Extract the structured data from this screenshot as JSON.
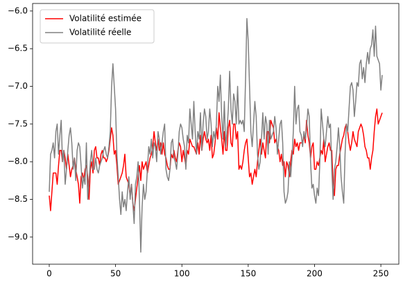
{
  "chart_data": {
    "type": "line",
    "x": [
      0,
      1,
      2,
      3,
      4,
      5,
      6,
      7,
      8,
      9,
      10,
      11,
      12,
      13,
      14,
      15,
      16,
      17,
      18,
      19,
      20,
      21,
      22,
      23,
      24,
      25,
      26,
      27,
      28,
      29,
      30,
      31,
      32,
      33,
      34,
      35,
      36,
      37,
      38,
      39,
      40,
      41,
      42,
      43,
      44,
      45,
      46,
      47,
      48,
      49,
      50,
      51,
      52,
      53,
      54,
      55,
      56,
      57,
      58,
      59,
      60,
      61,
      62,
      63,
      64,
      65,
      66,
      67,
      68,
      69,
      70,
      71,
      72,
      73,
      74,
      75,
      76,
      77,
      78,
      79,
      80,
      81,
      82,
      83,
      84,
      85,
      86,
      87,
      88,
      89,
      90,
      91,
      92,
      93,
      94,
      95,
      96,
      97,
      98,
      99,
      100,
      101,
      102,
      103,
      104,
      105,
      106,
      107,
      108,
      109,
      110,
      111,
      112,
      113,
      114,
      115,
      116,
      117,
      118,
      119,
      120,
      121,
      122,
      123,
      124,
      125,
      126,
      127,
      128,
      129,
      130,
      131,
      132,
      133,
      134,
      135,
      136,
      137,
      138,
      139,
      140,
      141,
      142,
      143,
      144,
      145,
      146,
      147,
      148,
      149,
      150,
      151,
      152,
      153,
      154,
      155,
      156,
      157,
      158,
      159,
      160,
      161,
      162,
      163,
      164,
      165,
      166,
      167,
      168,
      169,
      170,
      171,
      172,
      173,
      174,
      175,
      176,
      177,
      178,
      179,
      180,
      181,
      182,
      183,
      184,
      185,
      186,
      187,
      188,
      189,
      190,
      191,
      192,
      193,
      194,
      195,
      196,
      197,
      198,
      199,
      200,
      201,
      202,
      203,
      204,
      205,
      206,
      207,
      208,
      209,
      210,
      211,
      212,
      213,
      214,
      215,
      216,
      217,
      218,
      219,
      220,
      221,
      222,
      223,
      224,
      225,
      226,
      227,
      228,
      229,
      230,
      231,
      232,
      233,
      234,
      235,
      236,
      237,
      238,
      239,
      240,
      241,
      242,
      243,
      244,
      245,
      246,
      247,
      248,
      249,
      250,
      251
    ],
    "series": [
      {
        "name": "Volatilité estimée",
        "color": "#ff0000",
        "values": [
          -8.45,
          -8.65,
          -8.4,
          -8.15,
          -8.15,
          -8.15,
          -8.3,
          -8.05,
          -7.85,
          -7.85,
          -8.0,
          -7.85,
          -7.95,
          -8.1,
          -7.9,
          -8.05,
          -8.2,
          -8.1,
          -8.05,
          -7.95,
          -8.1,
          -8.2,
          -8.3,
          -8.55,
          -8.2,
          -8.15,
          -8.25,
          -8.1,
          -8.05,
          -8.2,
          -8.5,
          -8.1,
          -8.0,
          -8.15,
          -7.85,
          -7.8,
          -7.95,
          -7.95,
          -8.05,
          -7.9,
          -7.85,
          -7.95,
          -7.95,
          -8.0,
          -7.95,
          -7.85,
          -7.7,
          -7.55,
          -7.65,
          -7.9,
          -7.85,
          -8.05,
          -8.3,
          -8.25,
          -8.2,
          -8.15,
          -8.05,
          -7.9,
          -8.2,
          -8.25,
          -8.3,
          -8.45,
          -8.3,
          -8.55,
          -8.65,
          -8.5,
          -8.35,
          -8.2,
          -8.05,
          -8.25,
          -8.0,
          -8.1,
          -8.05,
          -8.0,
          -8.15,
          -8.05,
          -7.95,
          -7.9,
          -7.8,
          -7.6,
          -7.75,
          -7.85,
          -7.7,
          -7.85,
          -7.75,
          -7.9,
          -7.75,
          -7.9,
          -7.95,
          -8.05,
          -8.1,
          -8.1,
          -7.9,
          -7.95,
          -7.85,
          -7.95,
          -8.0,
          -7.85,
          -7.75,
          -7.8,
          -8.0,
          -7.85,
          -7.95,
          -8.05,
          -7.85,
          -7.9,
          -7.7,
          -7.75,
          -7.8,
          -7.8,
          -7.85,
          -7.9,
          -7.75,
          -7.9,
          -7.65,
          -7.85,
          -7.7,
          -7.6,
          -7.7,
          -7.75,
          -7.7,
          -7.85,
          -7.65,
          -7.95,
          -7.9,
          -7.75,
          -7.55,
          -7.7,
          -7.35,
          -7.55,
          -7.7,
          -7.9,
          -7.6,
          -7.85,
          -7.85,
          -7.55,
          -7.45,
          -7.75,
          -7.8,
          -7.5,
          -7.5,
          -7.7,
          -7.6,
          -8.1,
          -8.05,
          -8.1,
          -8.0,
          -7.85,
          -7.75,
          -7.7,
          -7.95,
          -8.2,
          -8.15,
          -8.3,
          -8.2,
          -8.1,
          -8.2,
          -8.0,
          -7.85,
          -7.7,
          -7.9,
          -7.75,
          -7.85,
          -7.95,
          -7.6,
          -7.6,
          -7.75,
          -7.45,
          -7.5,
          -7.55,
          -7.75,
          -7.7,
          -7.8,
          -7.85,
          -8.0,
          -7.9,
          -8.05,
          -8.0,
          -8.2,
          -8.0,
          -8.05,
          -8.2,
          -8.0,
          -7.85,
          -7.9,
          -7.7,
          -7.8,
          -7.75,
          -7.85,
          -7.75,
          -7.75,
          -7.75,
          -7.65,
          -7.75,
          -7.45,
          -7.65,
          -7.75,
          -7.95,
          -7.8,
          -7.75,
          -8.1,
          -8.1,
          -8.0,
          -8.05,
          -7.95,
          -7.85,
          -7.9,
          -7.7,
          -8.0,
          -7.9,
          -7.8,
          -7.75,
          -7.85,
          -7.85,
          -8.3,
          -8.45,
          -8.1,
          -8.05,
          -8.05,
          -7.9,
          -7.8,
          -7.7,
          -7.65,
          -7.55,
          -7.5,
          -7.6,
          -7.75,
          -7.85,
          -7.75,
          -7.6,
          -7.7,
          -7.75,
          -7.8,
          -7.6,
          -7.55,
          -7.5,
          -7.55,
          -7.65,
          -7.8,
          -7.85,
          -7.95,
          -7.95,
          -8.1,
          -7.95,
          -7.85,
          -7.6,
          -7.4,
          -7.3,
          -7.5,
          -7.45,
          -7.4,
          -7.35
        ]
      },
      {
        "name": "Volatilité réelle",
        "color": "#808080",
        "values": [
          -8.4,
          -7.9,
          -7.85,
          -7.75,
          -7.95,
          -7.6,
          -7.5,
          -7.9,
          -7.65,
          -7.45,
          -8.0,
          -7.85,
          -8.3,
          -8.1,
          -7.85,
          -7.65,
          -7.55,
          -7.75,
          -8.1,
          -7.95,
          -8.25,
          -7.85,
          -7.75,
          -7.8,
          -8.05,
          -8.35,
          -8.2,
          -8.3,
          -7.75,
          -8.5,
          -8.25,
          -8.0,
          -7.85,
          -8.1,
          -8.1,
          -7.95,
          -8.1,
          -8.15,
          -8.05,
          -8.0,
          -7.95,
          -7.85,
          -7.8,
          -7.9,
          -7.95,
          -7.8,
          -7.6,
          -7.0,
          -6.7,
          -7.0,
          -7.3,
          -7.9,
          -8.2,
          -8.5,
          -8.7,
          -8.4,
          -8.6,
          -8.5,
          -8.65,
          -8.4,
          -8.2,
          -8.5,
          -8.3,
          -8.55,
          -8.82,
          -8.3,
          -8.2,
          -8.0,
          -8.5,
          -9.2,
          -8.6,
          -8.3,
          -8.5,
          -8.4,
          -8.1,
          -7.8,
          -7.9,
          -7.7,
          -7.95,
          -7.75,
          -7.8,
          -8.0,
          -7.6,
          -7.7,
          -7.9,
          -7.75,
          -7.6,
          -7.5,
          -8.1,
          -8.2,
          -8.25,
          -8.1,
          -7.75,
          -7.7,
          -7.95,
          -8.0,
          -8.1,
          -7.9,
          -7.6,
          -7.5,
          -7.55,
          -7.7,
          -7.8,
          -8.1,
          -7.65,
          -7.75,
          -7.3,
          -7.5,
          -7.7,
          -7.2,
          -7.6,
          -7.9,
          -7.6,
          -7.7,
          -7.35,
          -7.85,
          -7.5,
          -7.3,
          -7.4,
          -7.7,
          -7.6,
          -7.3,
          -7.5,
          -7.8,
          -7.6,
          -7.7,
          -7.5,
          -7.0,
          -7.2,
          -6.85,
          -7.4,
          -7.7,
          -7.2,
          -7.8,
          -7.6,
          -7.3,
          -6.8,
          -7.3,
          -7.5,
          -7.1,
          -7.2,
          -7.5,
          -7.0,
          -7.5,
          -7.45,
          -7.5,
          -7.45,
          -7.6,
          -6.9,
          -6.1,
          -6.4,
          -7.0,
          -7.6,
          -7.8,
          -7.5,
          -7.2,
          -7.4,
          -7.9,
          -8.1,
          -8.0,
          -7.7,
          -7.35,
          -7.7,
          -7.4,
          -7.5,
          -7.9,
          -7.45,
          -7.7,
          -7.65,
          -7.6,
          -7.4,
          -7.55,
          -7.9,
          -7.7,
          -7.5,
          -7.45,
          -7.75,
          -8.4,
          -8.55,
          -8.5,
          -8.4,
          -8.0,
          -8.2,
          -7.95,
          -7.6,
          -7.0,
          -7.5,
          -7.3,
          -7.25,
          -7.6,
          -7.65,
          -7.8,
          -7.6,
          -7.7,
          -7.55,
          -7.3,
          -7.4,
          -8.0,
          -8.35,
          -8.3,
          -8.45,
          -8.55,
          -8.35,
          -8.45,
          -8.0,
          -7.3,
          -7.5,
          -7.7,
          -7.8,
          -7.6,
          -7.4,
          -7.55,
          -7.5,
          -8.1,
          -8.5,
          -8.1,
          -8.0,
          -7.8,
          -7.55,
          -7.8,
          -8.2,
          -8.4,
          -8.55,
          -7.9,
          -7.5,
          -7.6,
          -7.3,
          -7.0,
          -6.95,
          -7.05,
          -7.4,
          -7.2,
          -6.95,
          -7.0,
          -6.7,
          -6.65,
          -6.9,
          -6.75,
          -6.95,
          -6.7,
          -6.55,
          -6.7,
          -6.5,
          -6.45,
          -6.25,
          -6.6,
          -6.2,
          -6.6,
          -6.65,
          -6.7,
          -7.05,
          -6.85
        ]
      }
    ],
    "xlim": [
      -12.55,
      263.55
    ],
    "xticks": [
      0,
      50,
      100,
      150,
      200,
      250
    ],
    "ylim": [
      -9.36,
      -5.9
    ],
    "yticks": [
      {
        "value": -9.0,
        "label": "−9.0"
      },
      {
        "value": -8.5,
        "label": "−8.5"
      },
      {
        "value": -8.0,
        "label": "−8.0"
      },
      {
        "value": -7.5,
        "label": "−7.5"
      },
      {
        "value": -7.0,
        "label": "−7.0"
      },
      {
        "value": -6.5,
        "label": "−6.5"
      },
      {
        "value": -6.0,
        "label": "−6.0"
      }
    ],
    "legend": "upper left"
  }
}
